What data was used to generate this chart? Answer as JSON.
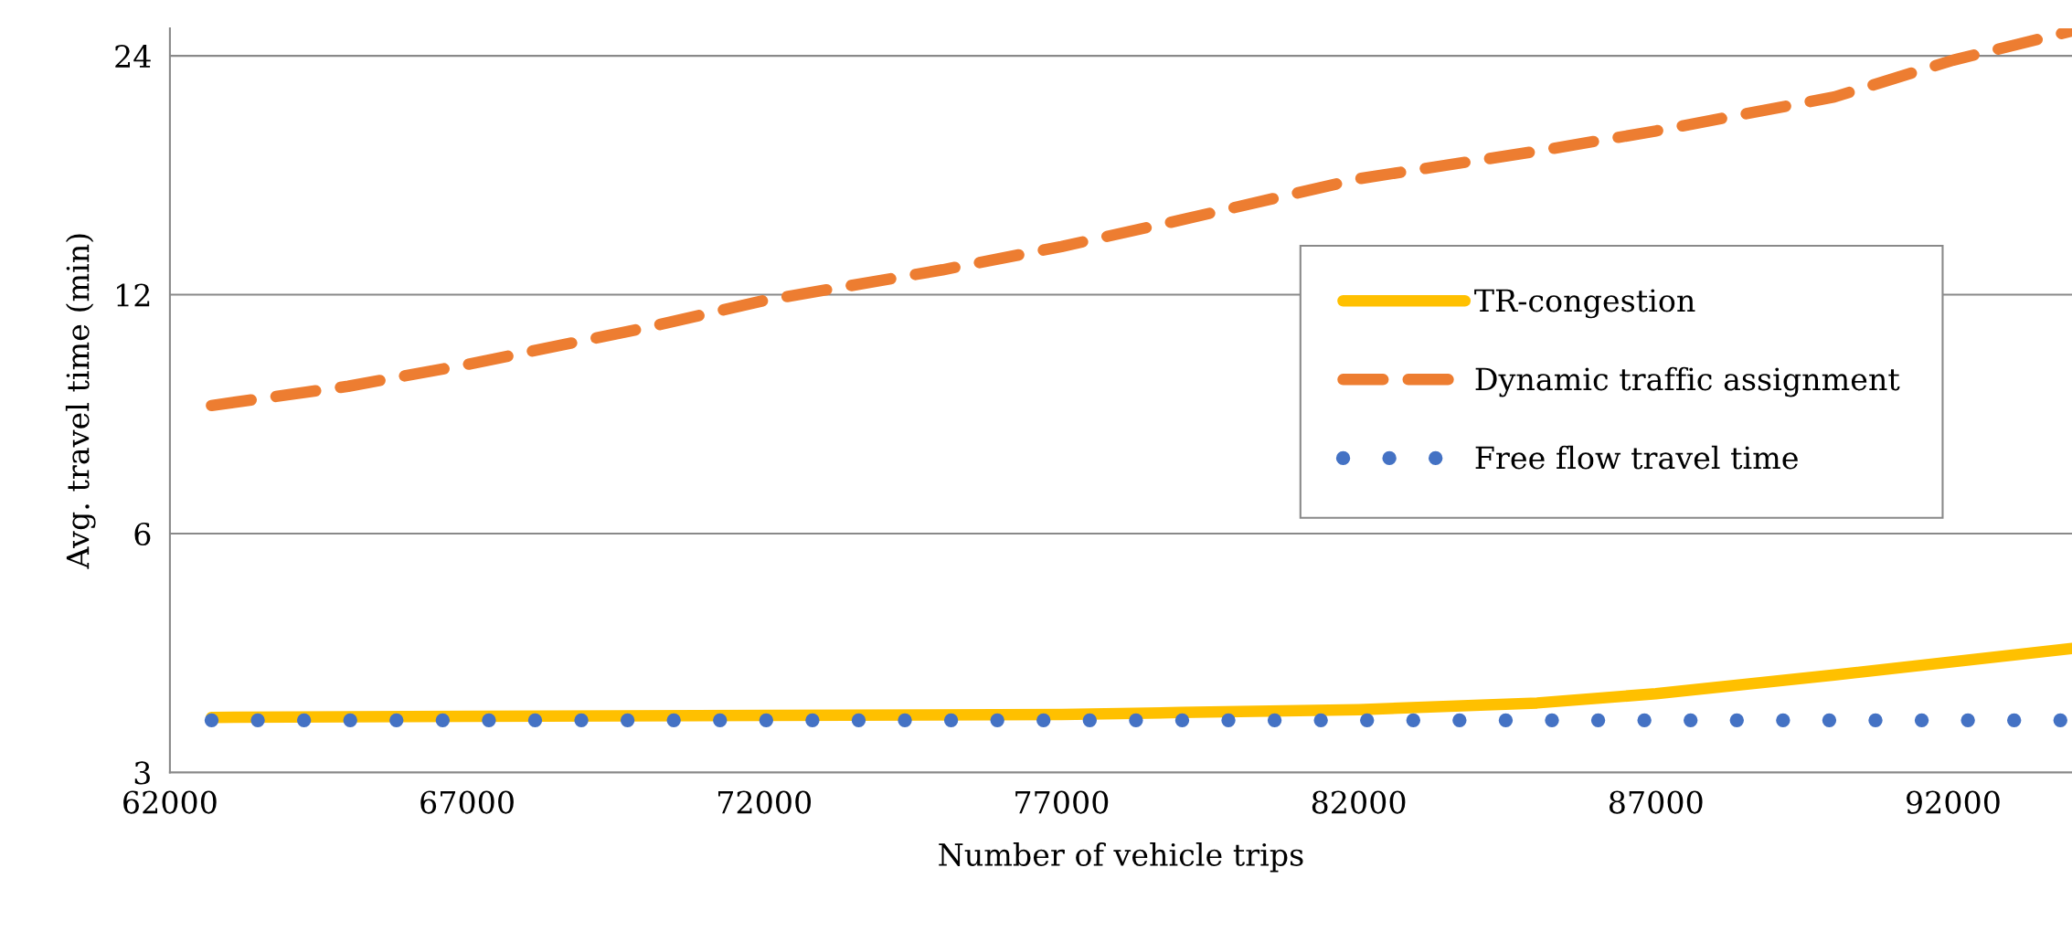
{
  "chart_data": {
    "type": "line",
    "xlabel": "Number of vehicle trips",
    "ylabel": "Avg. travel time (min)",
    "log": "y",
    "xlim": [
      62000,
      94000
    ],
    "xticks": [
      62000,
      67000,
      72000,
      77000,
      82000,
      87000,
      92000
    ],
    "ylim": [
      3,
      26
    ],
    "yticks": [
      3,
      6,
      12,
      24
    ],
    "grid": "y",
    "legend": "center right",
    "series": [
      {
        "name": "TR-congestion",
        "color": "#ffc000",
        "line_style": "solid",
        "x": [
          62700,
          67000,
          72000,
          77000,
          79000,
          82000,
          85000,
          87000,
          90000,
          94000
        ],
        "values": [
          3.52,
          3.53,
          3.54,
          3.55,
          3.57,
          3.6,
          3.67,
          3.77,
          3.98,
          4.3
        ]
      },
      {
        "name": "Dynamic traffic assignment",
        "color": "#ed7d31",
        "line_style": "dashed",
        "x": [
          62700,
          65000,
          67000,
          70000,
          72000,
          75000,
          77000,
          79000,
          82000,
          85000,
          87000,
          90000,
          92000,
          94000
        ],
        "values": [
          8.7,
          9.2,
          9.8,
          10.9,
          11.8,
          12.9,
          13.8,
          14.9,
          16.8,
          18.2,
          19.3,
          21.3,
          23.7,
          25.8
        ]
      },
      {
        "name": "Free flow travel time",
        "color": "#4472c4",
        "line_style": "dotted",
        "x": [
          62700,
          94000
        ],
        "values": [
          3.49,
          3.49
        ]
      }
    ]
  }
}
